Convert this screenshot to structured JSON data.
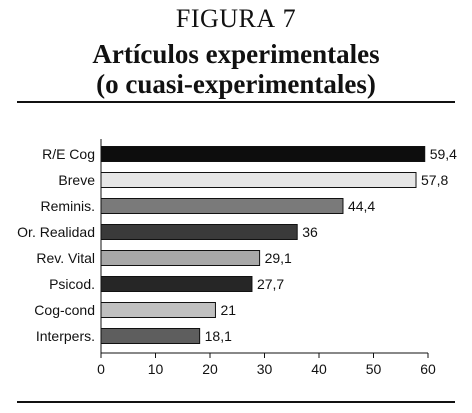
{
  "figure": {
    "label_first": "F",
    "label_rest": "IGURA",
    "number": "7",
    "title_line1": "Artículos experimentales",
    "title_line2": "(o cuasi-experimentales)"
  },
  "chart_data": {
    "type": "bar",
    "orientation": "horizontal",
    "categories": [
      "R/E Cog",
      "Breve",
      "Reminis.",
      "Or. Realidad",
      "Rev. Vital",
      "Psicod.",
      "Cog-cond",
      "Interpers."
    ],
    "values": [
      59.4,
      57.8,
      44.4,
      36,
      29.1,
      27.7,
      21,
      18.1
    ],
    "value_labels": [
      "59,4",
      "57,8",
      "44,4",
      "36",
      "29,1",
      "27,7",
      "21",
      "18,1"
    ],
    "bar_colors": [
      "#0d0d0d",
      "#e6e6e6",
      "#7a7a7a",
      "#3a3a3a",
      "#a8a8a8",
      "#262626",
      "#c0c0c0",
      "#5e5e5e"
    ],
    "xlim": [
      0,
      60
    ],
    "xticks": [
      "0",
      "10",
      "20",
      "30",
      "40",
      "50",
      "60"
    ],
    "grid": false,
    "title": "",
    "xlabel": "",
    "ylabel": ""
  }
}
